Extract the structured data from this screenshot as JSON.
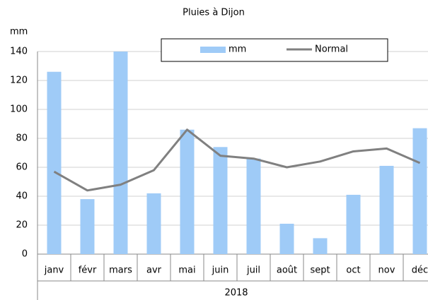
{
  "chart_data": {
    "type": "combo",
    "title": "Pluies à Dijon",
    "y_label": "mm",
    "categories": [
      "janv",
      "févr",
      "mars",
      "avr",
      "mai",
      "juin",
      "juil",
      "août",
      "sept",
      "oct",
      "nov",
      "déc"
    ],
    "x_group_label": "2018",
    "series": [
      {
        "name": "mm",
        "type": "bar",
        "color": "#9fcbf7",
        "values": [
          126,
          38,
          140,
          42,
          86,
          74,
          66,
          21,
          11,
          41,
          61,
          87
        ]
      },
      {
        "name": "Normal",
        "type": "line",
        "color": "#808080",
        "values": [
          57,
          44,
          48,
          58,
          86,
          68,
          66,
          60,
          64,
          71,
          73,
          63
        ]
      }
    ],
    "ylim": [
      0,
      140
    ],
    "yticks": [
      0,
      20,
      40,
      60,
      80,
      100,
      120,
      140
    ],
    "grid": true
  }
}
